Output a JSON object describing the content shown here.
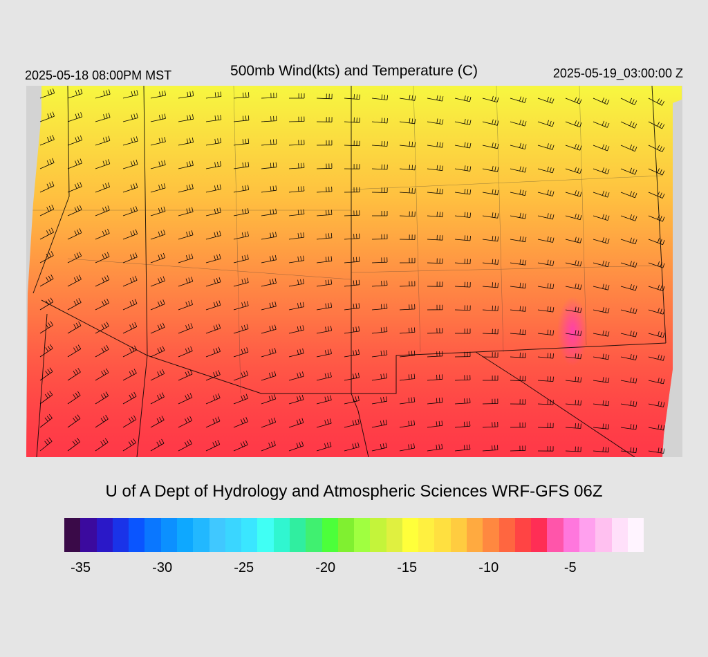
{
  "header": {
    "local_time": "2025-05-18 08:00PM MST",
    "title": "500mb Wind(kts) and Temperature (C)",
    "utc_time": "2025-05-19_03:00:00 Z"
  },
  "footer": {
    "credit": "U of A Dept of Hydrology and Atmospheric Sciences WRF-GFS 06Z"
  },
  "colorbar": {
    "colors": [
      "#3a0a48",
      "#3b0a9e",
      "#2a18c8",
      "#1a33e8",
      "#0a55ff",
      "#0a77ff",
      "#0c90ff",
      "#0ea8ff",
      "#22b8ff",
      "#40c8ff",
      "#3ad6ff",
      "#3ae6ff",
      "#40fff4",
      "#30f6d0",
      "#30eea0",
      "#40f070",
      "#4cff3a",
      "#80f030",
      "#a0ff40",
      "#c4f43a",
      "#e0f040",
      "#ffff3a",
      "#fff040",
      "#ffe040",
      "#ffcc40",
      "#ffaa40",
      "#ff8840",
      "#ff6640",
      "#ff4444",
      "#ff2e55",
      "#ff55aa",
      "#ff77dd",
      "#ffa0ee",
      "#ffc0f0",
      "#ffe0fa",
      "#fff4ff"
    ],
    "tick_labels": [
      "-35",
      "-30",
      "-25",
      "-20",
      "-15",
      "-10",
      "-5"
    ],
    "tick_values": [
      -35,
      -30,
      -25,
      -20,
      -15,
      -10,
      -5
    ],
    "min": -36,
    "max": -0.5
  },
  "map": {
    "region": "Southwestern United States",
    "field": "500mb temperature (C) with wind barbs (kts)",
    "background_color": "#d3d3d3"
  }
}
